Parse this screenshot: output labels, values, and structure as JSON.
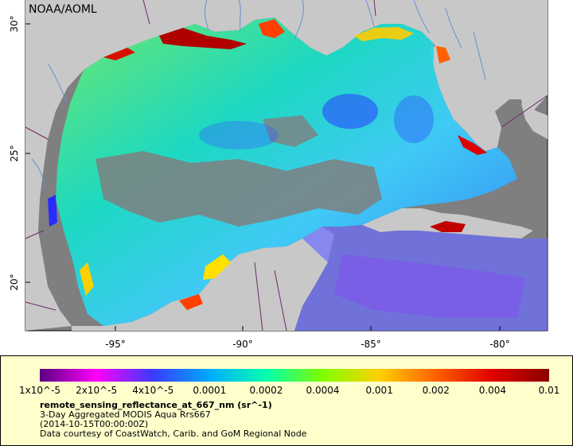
{
  "credit_top": "NOAA/AOML",
  "map": {
    "lat_ticks": [
      "30°",
      "25°",
      "20°"
    ],
    "lon_ticks": [
      "-95°",
      "-90°",
      "-85°",
      "-80°"
    ],
    "colors": {
      "land": "#c8c8c8",
      "nodata": "#7f7f7f",
      "rivers": "#6a8fd0",
      "borders": "#6b2a6b"
    }
  },
  "legend": {
    "tick_labels": [
      "1x10^-5",
      "2x10^-5",
      "4x10^-5",
      "0.0001",
      "0.0002",
      "0.0004",
      "0.001",
      "0.002",
      "0.004",
      "0.01"
    ],
    "variable": "remote_sensing_reflectance_at_667_nm (sr^-1)",
    "line1": "3-Day Aggregated MODIS Aqua Rrs667",
    "line2": "(2014-10-15T00:00:00Z)",
    "line3": "Data courtesy of CoastWatch, Carib. and GoM Regional Node",
    "colormap": [
      "#5a0080",
      "#ff00ff",
      "#3a3aff",
      "#00aaff",
      "#00ffb0",
      "#80ff00",
      "#ffd000",
      "#ff6000",
      "#e00000",
      "#8b0000"
    ]
  }
}
